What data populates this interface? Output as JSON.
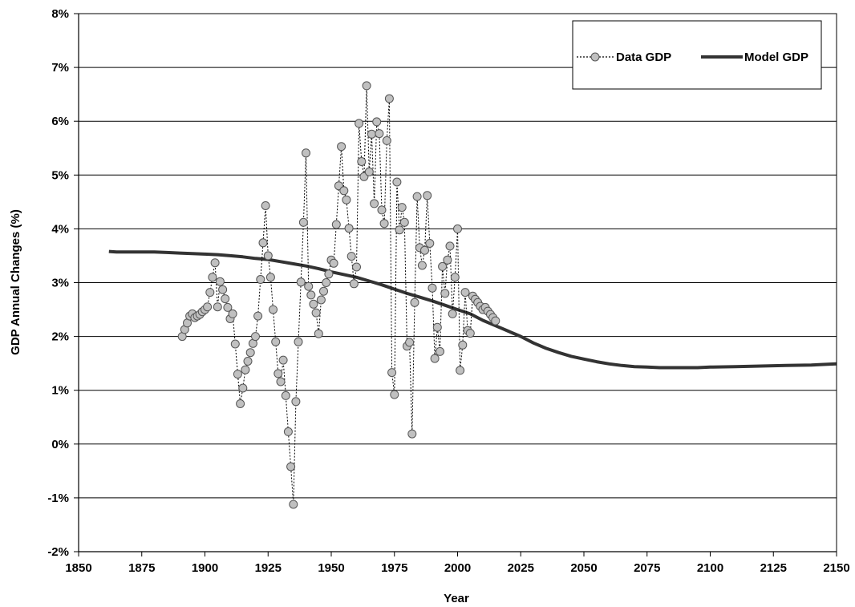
{
  "chart_data": {
    "type": "line",
    "xlabel": "Year",
    "ylabel": "GDP Annual Changes (%)",
    "xlim": [
      1850,
      2150
    ],
    "ylim": [
      -2,
      8
    ],
    "x_ticks": [
      "1850",
      "1875",
      "1900",
      "1925",
      "1950",
      "1975",
      "2000",
      "2025",
      "2050",
      "2075",
      "2100",
      "2125",
      "2150"
    ],
    "y_ticks": [
      "-2%",
      "-1%",
      "0%",
      "1%",
      "2%",
      "3%",
      "4%",
      "5%",
      "6%",
      "7%",
      "8%"
    ],
    "grid": "horizontal",
    "legend_position": "top-right",
    "series": [
      {
        "name": "Data GDP",
        "style": "dotted-markers",
        "color": "#c0c0c0",
        "x": [
          1891,
          1892,
          1893,
          1894,
          1895,
          1896,
          1897,
          1898,
          1899,
          1900,
          1901,
          1902,
          1903,
          1904,
          1905,
          1906,
          1907,
          1908,
          1909,
          1910,
          1911,
          1912,
          1913,
          1914,
          1915,
          1916,
          1917,
          1918,
          1919,
          1920,
          1921,
          1922,
          1923,
          1924,
          1925,
          1926,
          1927,
          1928,
          1929,
          1930,
          1931,
          1932,
          1933,
          1934,
          1935,
          1936,
          1937,
          1938,
          1939,
          1940,
          1941,
          1942,
          1943,
          1944,
          1945,
          1946,
          1947,
          1948,
          1949,
          1950,
          1951,
          1952,
          1953,
          1954,
          1955,
          1956,
          1957,
          1958,
          1959,
          1960,
          1961,
          1962,
          1963,
          1964,
          1965,
          1966,
          1967,
          1968,
          1969,
          1970,
          1971,
          1972,
          1973,
          1974,
          1975,
          1976,
          1977,
          1978,
          1979,
          1980,
          1981,
          1982,
          1983,
          1984,
          1985,
          1986,
          1987,
          1988,
          1989,
          1990,
          1991,
          1992,
          1993,
          1994,
          1995,
          1996,
          1997,
          1998,
          1999,
          2000,
          2001,
          2002,
          2003,
          2004,
          2005,
          2006,
          2007,
          2008,
          2009,
          2010,
          2011,
          2012,
          2013,
          2014,
          2015
        ],
        "values": [
          2.0,
          2.13,
          2.25,
          2.38,
          2.42,
          2.35,
          2.38,
          2.41,
          2.46,
          2.5,
          2.55,
          2.82,
          3.1,
          3.37,
          2.55,
          3.02,
          2.87,
          2.7,
          2.54,
          2.33,
          2.42,
          1.86,
          1.3,
          0.75,
          1.04,
          1.38,
          1.54,
          1.7,
          1.87,
          2.0,
          2.38,
          3.06,
          3.74,
          4.43,
          3.5,
          3.1,
          2.5,
          1.9,
          1.31,
          1.16,
          1.56,
          0.9,
          0.23,
          -0.42,
          -1.12,
          0.79,
          1.9,
          3.01,
          4.12,
          5.41,
          2.93,
          2.77,
          2.6,
          2.44,
          2.05,
          2.68,
          2.84,
          3.0,
          3.16,
          3.42,
          3.36,
          4.08,
          4.8,
          5.53,
          4.71,
          4.54,
          4.01,
          3.49,
          2.98,
          3.29,
          5.96,
          5.25,
          4.97,
          6.66,
          5.06,
          5.76,
          4.47,
          5.99,
          5.77,
          4.35,
          4.1,
          5.64,
          6.42,
          1.33,
          0.92,
          4.87,
          3.98,
          4.4,
          4.12,
          1.82,
          1.89,
          0.19,
          2.63,
          4.6,
          3.65,
          3.32,
          3.6,
          4.62,
          3.73,
          2.9,
          1.59,
          2.17,
          1.72,
          3.3,
          2.8,
          3.42,
          3.68,
          2.42,
          3.1,
          4.0,
          1.37,
          1.84,
          2.82,
          2.11,
          2.06,
          2.75,
          2.69,
          2.63,
          2.56,
          2.5,
          2.54,
          2.47,
          2.41,
          2.35,
          2.29
        ]
      },
      {
        "name": "Model GDP",
        "style": "solid",
        "color": "#333333",
        "x": [
          1862,
          1865,
          1870,
          1875,
          1880,
          1885,
          1890,
          1895,
          1900,
          1905,
          1910,
          1915,
          1920,
          1925,
          1930,
          1935,
          1940,
          1945,
          1950,
          1955,
          1960,
          1965,
          1970,
          1975,
          1980,
          1985,
          1990,
          1995,
          2000,
          2005,
          2010,
          2015,
          2020,
          2025,
          2030,
          2035,
          2040,
          2045,
          2050,
          2055,
          2060,
          2065,
          2070,
          2075,
          2080,
          2085,
          2090,
          2095,
          2100,
          2110,
          2120,
          2130,
          2140,
          2150
        ],
        "values": [
          3.58,
          3.57,
          3.57,
          3.57,
          3.57,
          3.56,
          3.55,
          3.54,
          3.53,
          3.52,
          3.5,
          3.48,
          3.45,
          3.43,
          3.39,
          3.35,
          3.31,
          3.26,
          3.2,
          3.15,
          3.1,
          3.03,
          2.96,
          2.88,
          2.8,
          2.73,
          2.66,
          2.58,
          2.5,
          2.42,
          2.3,
          2.2,
          2.1,
          2.0,
          1.88,
          1.78,
          1.7,
          1.63,
          1.58,
          1.53,
          1.49,
          1.46,
          1.44,
          1.43,
          1.42,
          1.42,
          1.42,
          1.42,
          1.43,
          1.44,
          1.45,
          1.46,
          1.47,
          1.49
        ]
      }
    ]
  }
}
